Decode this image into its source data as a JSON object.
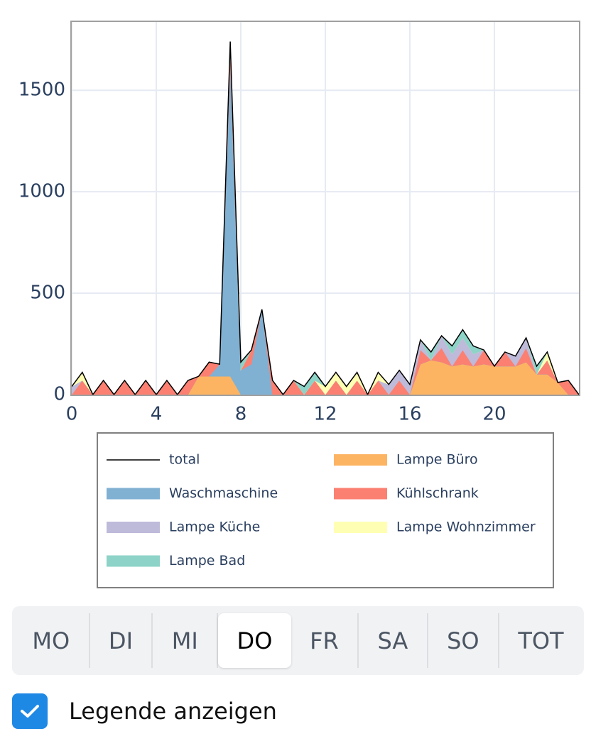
{
  "chart_data": {
    "type": "area",
    "x": [
      0,
      0.5,
      1,
      1.5,
      2,
      2.5,
      3,
      3.5,
      4,
      4.5,
      5,
      5.5,
      6,
      6.5,
      7,
      7.5,
      8,
      8.5,
      9,
      9.5,
      10,
      10.5,
      11,
      11.5,
      12,
      12.5,
      13,
      13.5,
      14,
      14.5,
      15,
      15.5,
      16,
      16.5,
      17,
      17.5,
      18,
      18.5,
      19,
      19.5,
      20,
      20.5,
      21,
      21.5,
      22,
      22.5,
      23,
      23.5,
      24
    ],
    "series": [
      {
        "name": "total",
        "type": "line",
        "color": "#000000",
        "values": [
          40,
          110,
          0,
          70,
          0,
          70,
          0,
          70,
          0,
          70,
          0,
          70,
          90,
          160,
          150,
          1740,
          160,
          220,
          420,
          70,
          0,
          70,
          40,
          110,
          40,
          110,
          40,
          110,
          0,
          110,
          50,
          120,
          50,
          270,
          210,
          290,
          240,
          320,
          240,
          220,
          140,
          210,
          190,
          280,
          140,
          210,
          60,
          70,
          0
        ]
      },
      {
        "name": "Lampe Büro",
        "type": "area",
        "color": "#fdb462",
        "values": [
          0,
          0,
          0,
          0,
          0,
          0,
          0,
          0,
          0,
          0,
          0,
          0,
          90,
          90,
          90,
          90,
          0,
          0,
          0,
          0,
          0,
          0,
          0,
          0,
          0,
          0,
          0,
          0,
          0,
          0,
          0,
          0,
          0,
          150,
          170,
          160,
          140,
          150,
          140,
          150,
          140,
          140,
          140,
          160,
          100,
          100,
          60,
          0,
          0
        ]
      },
      {
        "name": "Waschmaschine",
        "type": "area",
        "color": "#80b1d3",
        "values": [
          0,
          0,
          0,
          0,
          0,
          0,
          0,
          0,
          0,
          0,
          0,
          0,
          0,
          0,
          60,
          1540,
          120,
          150,
          420,
          0,
          0,
          0,
          0,
          0,
          0,
          0,
          0,
          0,
          0,
          0,
          0,
          0,
          0,
          0,
          0,
          0,
          0,
          0,
          0,
          0,
          0,
          0,
          0,
          0,
          0,
          0,
          0,
          0,
          0
        ]
      },
      {
        "name": "Kühlschrank",
        "type": "area",
        "color": "#fb8072",
        "values": [
          0,
          70,
          0,
          70,
          0,
          70,
          0,
          70,
          0,
          70,
          0,
          70,
          0,
          70,
          0,
          70,
          0,
          70,
          0,
          70,
          0,
          70,
          0,
          70,
          0,
          70,
          0,
          70,
          0,
          70,
          0,
          70,
          0,
          70,
          0,
          70,
          0,
          70,
          0,
          70,
          0,
          70,
          0,
          70,
          0,
          70,
          0,
          70,
          0
        ]
      },
      {
        "name": "Lampe Küche",
        "type": "area",
        "color": "#bebada",
        "values": [
          40,
          0,
          0,
          0,
          0,
          0,
          0,
          0,
          0,
          0,
          0,
          0,
          0,
          0,
          0,
          0,
          0,
          0,
          0,
          0,
          0,
          0,
          0,
          0,
          0,
          0,
          0,
          0,
          0,
          0,
          50,
          50,
          50,
          50,
          0,
          60,
          60,
          60,
          60,
          0,
          0,
          0,
          50,
          50,
          0,
          0,
          0,
          0,
          0
        ]
      },
      {
        "name": "Lampe Wohnzimmer",
        "type": "area",
        "color": "#ffffb3",
        "values": [
          0,
          40,
          0,
          0,
          0,
          0,
          0,
          0,
          0,
          0,
          0,
          0,
          0,
          0,
          0,
          0,
          0,
          0,
          0,
          0,
          0,
          0,
          0,
          0,
          40,
          40,
          40,
          40,
          0,
          40,
          0,
          0,
          0,
          0,
          0,
          0,
          0,
          0,
          0,
          0,
          0,
          0,
          0,
          0,
          0,
          40,
          0,
          0,
          0
        ]
      },
      {
        "name": "Lampe Bad",
        "type": "area",
        "color": "#8dd3c7",
        "values": [
          0,
          0,
          0,
          0,
          0,
          0,
          0,
          0,
          0,
          0,
          0,
          0,
          0,
          0,
          0,
          40,
          40,
          0,
          0,
          0,
          0,
          0,
          40,
          40,
          0,
          0,
          0,
          0,
          0,
          0,
          0,
          0,
          0,
          0,
          40,
          0,
          40,
          40,
          40,
          0,
          0,
          0,
          0,
          0,
          40,
          0,
          0,
          0,
          0
        ]
      }
    ],
    "xlim": [
      0,
      24
    ],
    "ylim": [
      0,
      1840
    ],
    "xticks": [
      0,
      4,
      8,
      12,
      16,
      20
    ],
    "yticks": [
      0,
      500,
      1000,
      1500
    ],
    "grid": true,
    "legend": true
  },
  "tabs": {
    "items": [
      "MO",
      "DI",
      "MI",
      "DO",
      "FR",
      "SA",
      "SO",
      "TOT"
    ],
    "active": 3
  },
  "checkbox": {
    "label": "Legende anzeigen",
    "checked": true
  }
}
